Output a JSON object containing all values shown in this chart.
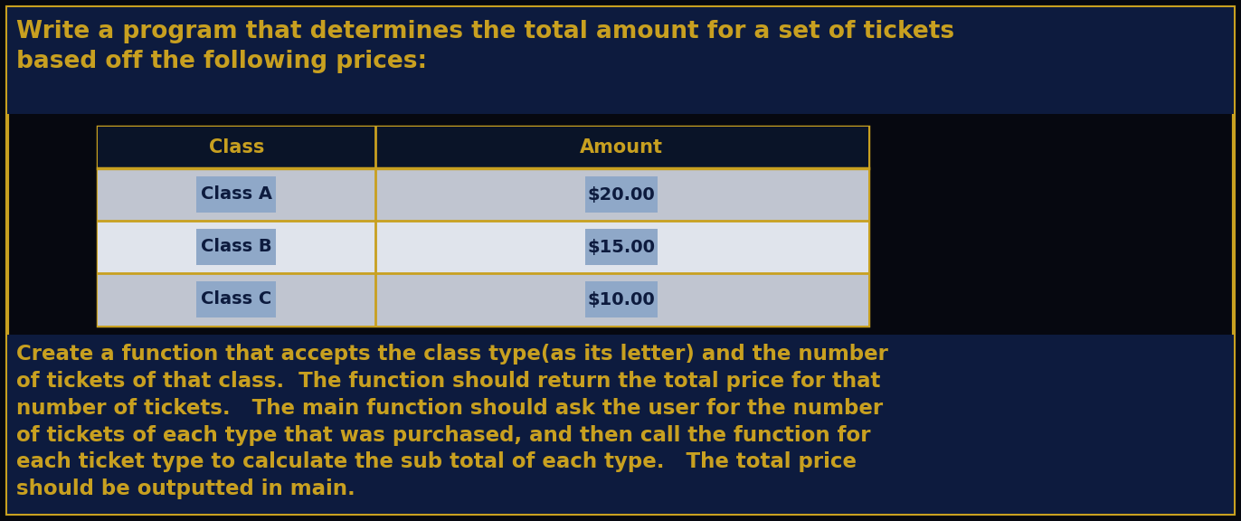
{
  "bg_color": "#060810",
  "outer_border_color": "#c8a020",
  "title_bg_color": "#0d1b3e",
  "title_text": "Write a program that determines the total amount for a set of tickets\nbased off the following prices:",
  "title_color": "#c8a020",
  "title_fontsize": 19,
  "table_header": [
    "Class",
    "Amount"
  ],
  "table_rows": [
    [
      "Class A",
      "$20.00"
    ],
    [
      "Class B",
      "$15.00"
    ],
    [
      "Class C",
      "$10.00"
    ]
  ],
  "table_header_bg": "#0a1428",
  "table_header_text_color": "#c8a020",
  "table_row_bg_odd": "#c0c5d0",
  "table_row_bg_even": "#e0e4ec",
  "table_cell_highlight": "#8fa8c8",
  "table_text_color": "#0d1b3e",
  "table_border_color": "#c8a020",
  "footer_text": "Create a function that accepts the class type(as its letter) and the number\nof tickets of that class.  The function should return the total price for that\nnumber of tickets.   The main function should ask the user for the number\nof tickets of each type that was purchased, and then call the function for\neach ticket type to calculate the sub total of each type.   The total price\nshould be outputted in main.",
  "footer_color": "#c8a020",
  "footer_bg": "#0d1b3e",
  "footer_fontsize": 16.5
}
